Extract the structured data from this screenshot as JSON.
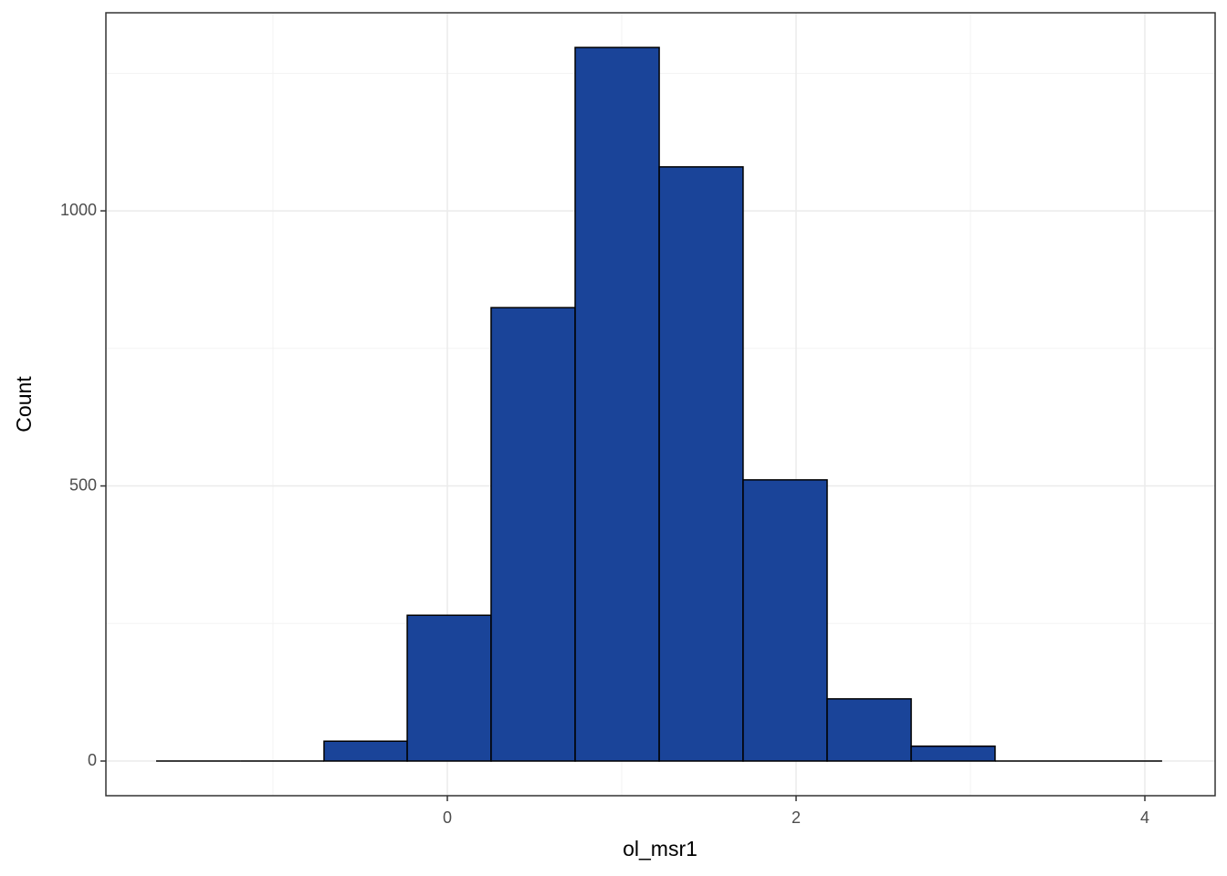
{
  "chart_data": {
    "type": "histogram",
    "x_label": "ol_msr1",
    "y_label": "Count",
    "bins": [
      -1.67,
      -1.188,
      -0.707,
      -0.23,
      0.251,
      0.733,
      1.215,
      1.696,
      2.178,
      2.66,
      3.141,
      3.623,
      4.099
    ],
    "values": [
      0,
      0,
      36,
      265,
      824,
      1297,
      1080,
      511,
      113,
      27,
      0,
      0
    ],
    "color": "#1a4499",
    "edge_color": "#000000",
    "xlim": [
      -1.958,
      4.403
    ],
    "xticks": [
      0,
      2,
      4
    ],
    "x_minor_ticks": [
      -1,
      1,
      3
    ],
    "ylim": [
      -63,
      1360
    ],
    "yticks": [
      0,
      500,
      1000
    ],
    "y_minor_ticks": [
      250,
      750,
      1250
    ],
    "grid": true
  }
}
